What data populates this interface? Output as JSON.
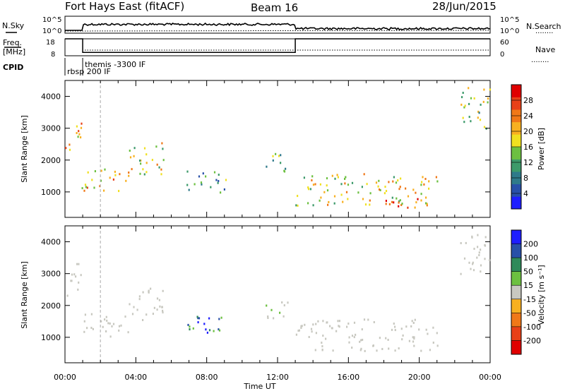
{
  "header": {
    "radar": "Fort Hays East (fitACF)",
    "beam": "Beam 16",
    "date": "28/Jun/2015"
  },
  "strip_labels": {
    "nsky": "N.Sky",
    "nsearch": "N.Search",
    "freq_line1": "Freq.",
    "freq_line2": "[MHz]",
    "nave": "Nave",
    "cpid": "CPID",
    "legend_dots": "........"
  },
  "strip_ticks": {
    "noise_left": [
      "10^5",
      "10^0"
    ],
    "noise_right": [
      "10^5",
      "10^0"
    ],
    "freq_left": [
      "18",
      "8"
    ],
    "nave_right": [
      "60",
      "0"
    ]
  },
  "cpid_segments": [
    {
      "start_hour": 0.0,
      "label": "rbsp 200 IF"
    },
    {
      "start_hour": 1.0,
      "label": "themis -3300 IF"
    }
  ],
  "freq_trace": {
    "x_hours": [
      0,
      1.0,
      1.0,
      13.0,
      13.0,
      24
    ],
    "mhz": [
      18,
      18,
      10,
      10,
      18,
      18
    ]
  },
  "chart_data": [
    {
      "type": "heatmap",
      "panel": "power",
      "ylabel": "Slant Range [km]",
      "xlabel": "",
      "xlim": [
        0,
        24
      ],
      "ylim": [
        200,
        4500
      ],
      "x_ticks": [
        "00:00",
        "04:00",
        "08:00",
        "12:00",
        "16:00",
        "20:00",
        "00:00"
      ],
      "y_ticks": [
        1000,
        2000,
        3000,
        4000
      ],
      "colorbar": {
        "label": "Power [dB]",
        "ticks": [
          4,
          8,
          12,
          16,
          20,
          24,
          28
        ],
        "range": [
          0,
          32
        ],
        "colors": [
          "#1e1eff",
          "#2850a8",
          "#2f7a8a",
          "#3c9a6a",
          "#6cc040",
          "#f0e020",
          "#f8b020",
          "#f07818",
          "#e84018",
          "#e00000"
        ]
      },
      "vertical_marker_hour": 2.0,
      "regions": [
        {
          "t": [
            0.0,
            0.9
          ],
          "r": [
            2300,
            3400
          ],
          "level": 22
        },
        {
          "t": [
            0.9,
            3.6
          ],
          "r": [
            1050,
            1800
          ],
          "level": 20
        },
        {
          "t": [
            3.6,
            5.6
          ],
          "r": [
            1500,
            2600
          ],
          "level": 17
        },
        {
          "t": [
            6.8,
            9.1
          ],
          "r": [
            1000,
            1700
          ],
          "level": 12
        },
        {
          "t": [
            11.3,
            12.6
          ],
          "r": [
            1600,
            2300
          ],
          "level": 12
        },
        {
          "t": [
            13.0,
            21.0
          ],
          "r": [
            600,
            1600
          ],
          "level": 18
        },
        {
          "t": [
            18.0,
            20.0
          ],
          "r": [
            450,
            900
          ],
          "level": 26
        },
        {
          "t": [
            22.3,
            24.0
          ],
          "r": [
            3000,
            4300
          ],
          "level": 16
        }
      ]
    },
    {
      "type": "heatmap",
      "panel": "velocity",
      "ylabel": "Slant Range [km]",
      "xlabel": "Time UT",
      "xlim": [
        0,
        24
      ],
      "ylim": [
        200,
        4500
      ],
      "x_ticks": [
        "00:00",
        "04:00",
        "08:00",
        "12:00",
        "16:00",
        "20:00",
        "00:00"
      ],
      "y_ticks": [
        1000,
        2000,
        3000,
        4000
      ],
      "colorbar": {
        "label": "Velocity [m s⁻¹]",
        "ticks": [
          200,
          100,
          50,
          15,
          -15,
          -50,
          -100,
          -200
        ],
        "colors": [
          "#1e1eff",
          "#2850a8",
          "#2f8a5a",
          "#6cc040",
          "#c8c8c0",
          "#f8b020",
          "#f07818",
          "#e84018",
          "#e00000"
        ]
      },
      "vertical_marker_hour": 2.0,
      "regions": [
        {
          "t": [
            0.0,
            0.9
          ],
          "r": [
            2300,
            3400
          ],
          "level": 0
        },
        {
          "t": [
            0.9,
            3.6
          ],
          "r": [
            1050,
            1800
          ],
          "level": 0
        },
        {
          "t": [
            3.6,
            5.6
          ],
          "r": [
            1500,
            2600
          ],
          "level": 0
        },
        {
          "t": [
            6.8,
            9.1
          ],
          "r": [
            1000,
            1700
          ],
          "level": 120
        },
        {
          "t": [
            11.3,
            12.6
          ],
          "r": [
            1600,
            2300
          ],
          "level": 10
        },
        {
          "t": [
            13.0,
            21.0
          ],
          "r": [
            600,
            1600
          ],
          "level": 0
        },
        {
          "t": [
            22.3,
            24.0
          ],
          "r": [
            3000,
            4300
          ],
          "level": 0
        }
      ]
    }
  ]
}
